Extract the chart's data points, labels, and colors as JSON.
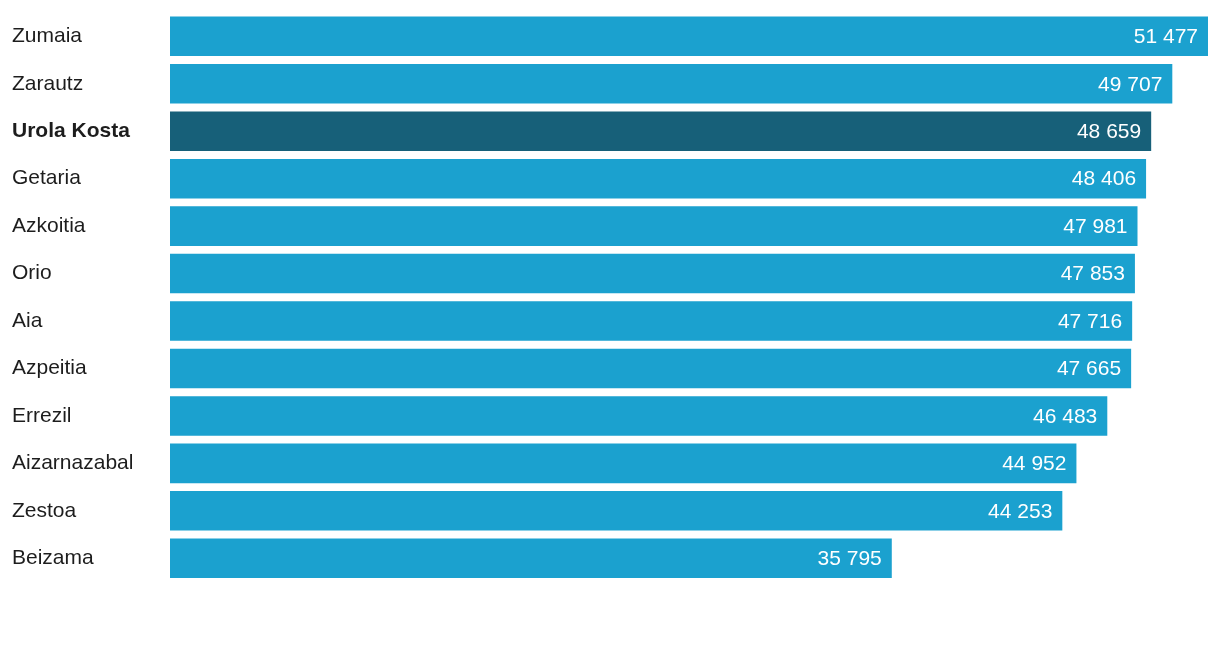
{
  "chart_data": {
    "type": "bar",
    "categories": [
      "Zumaia",
      "Zarautz",
      "Urola Kosta",
      "Getaria",
      "Azkoitia",
      "Orio",
      "Aia",
      "Azpeitia",
      "Errezil",
      "Aizarnazabal",
      "Zestoa",
      "Beizama"
    ],
    "values": [
      51477,
      49707,
      48659,
      48406,
      47981,
      47853,
      47716,
      47665,
      46483,
      44952,
      44253,
      35795
    ],
    "value_labels": [
      "51 477",
      "49 707",
      "48 659",
      "48 406",
      "47 981",
      "47 853",
      "47 716",
      "47 665",
      "46 483",
      "44 952",
      "44 253",
      "35 795"
    ],
    "colors": [
      "#1ba1cf",
      "#1ba1cf",
      "#176079",
      "#1ba1cf",
      "#1ba1cf",
      "#1ba1cf",
      "#1ba1cf",
      "#1ba1cf",
      "#1ba1cf",
      "#1ba1cf",
      "#1ba1cf",
      "#1ba1cf"
    ],
    "orientation": "horizontal"
  }
}
